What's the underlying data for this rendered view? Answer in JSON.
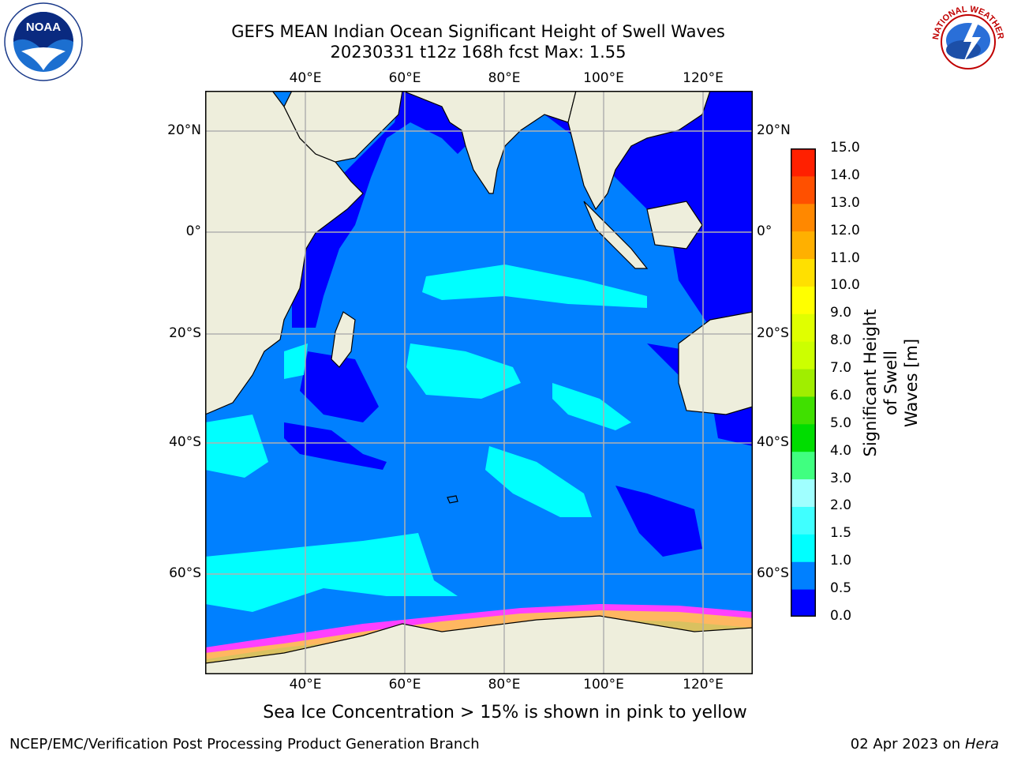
{
  "title": {
    "line1": "GEFS MEAN Indian Ocean Significant Height of Swell Waves",
    "line2": "20230331 t12z 168h fcst   Max: 1.55"
  },
  "map": {
    "lon_ticks": [
      "40°E",
      "60°E",
      "80°E",
      "100°E",
      "120°E"
    ],
    "lat_ticks": [
      "20°N",
      "0°",
      "20°S",
      "40°S",
      "60°S"
    ],
    "lon_values": [
      40,
      60,
      80,
      100,
      120
    ],
    "lat_values": [
      20,
      0,
      -20,
      -40,
      -60
    ],
    "colors": {
      "land": "#eeeedc",
      "ocean_0_0p5": "#0000ff",
      "ocean_0p5_1": "#0080ff",
      "ocean_1_1p5": "#00ffff",
      "ice_pink": "#ff40ff",
      "ice_yellow": "#ffcc44",
      "grid": "#b0b0b0"
    }
  },
  "colorbar": {
    "label_line1": "Significant Height of Swell",
    "label_line2": "Waves [m]",
    "ticks": [
      "0.0",
      "0.5",
      "1.0",
      "1.5",
      "2.0",
      "3.0",
      "4.0",
      "5.0",
      "6.0",
      "7.0",
      "8.0",
      "9.0",
      "10.0",
      "11.0",
      "12.0",
      "13.0",
      "14.0",
      "15.0"
    ],
    "colors": [
      "#0000ff",
      "#0080ff",
      "#00ffff",
      "#40ffff",
      "#a0ffff",
      "#40ff80",
      "#00dd00",
      "#40e000",
      "#a0ee00",
      "#ccff00",
      "#e0ff00",
      "#ffff00",
      "#ffe000",
      "#ffb000",
      "#ff8800",
      "#ff5000",
      "#ff2000",
      "#ff0000"
    ]
  },
  "ice_note": "Sea Ice Concentration > 15% is shown in pink to yellow",
  "footer": {
    "left": "NCEP/EMC/Verification Post Processing Product Generation Branch",
    "right_date": "02 Apr 2023 on ",
    "right_host": "Hera"
  },
  "logos": {
    "noaa_text": "NOAA",
    "nws_text": "NATIONAL WEATHER SERVICE"
  }
}
